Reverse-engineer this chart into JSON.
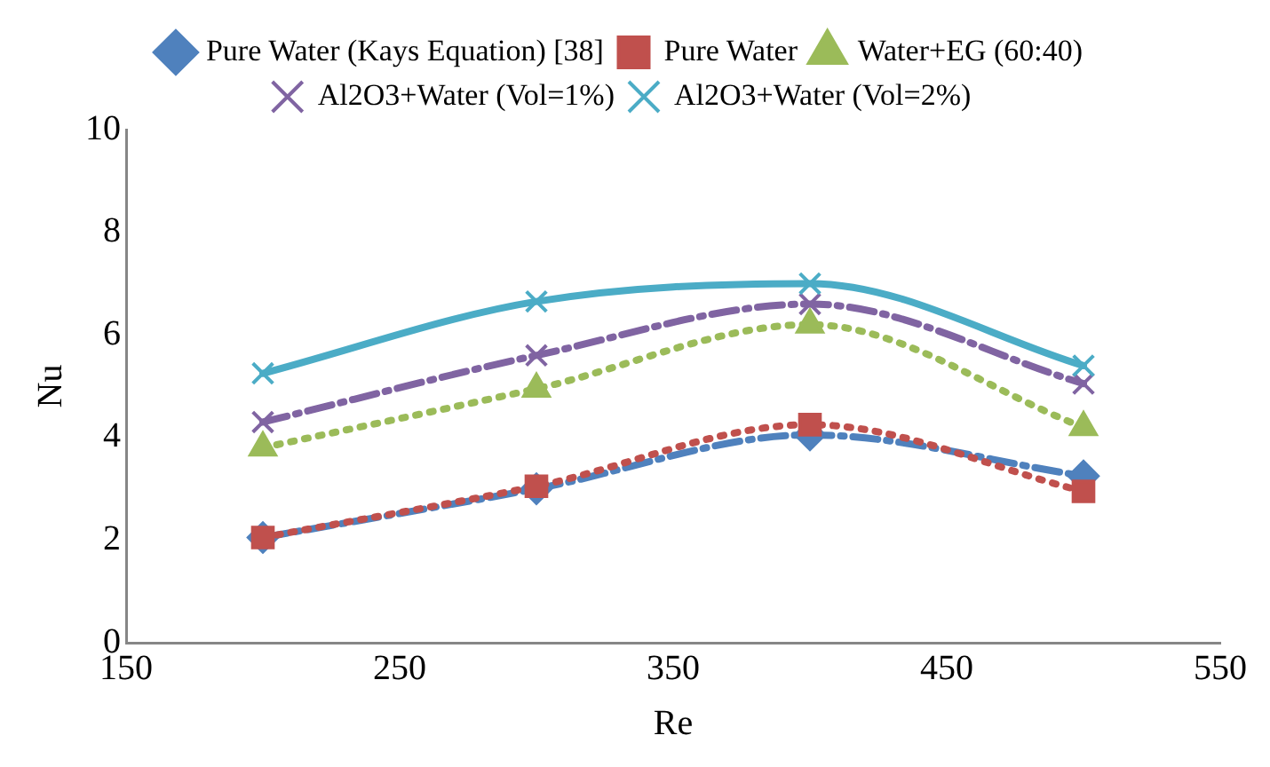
{
  "chart_data": {
    "type": "line",
    "xlabel": "Re",
    "ylabel": "Nu",
    "x": [
      200,
      300,
      400,
      500
    ],
    "series": [
      {
        "name": "Pure Water (Kays Equation) [38]",
        "color": "#4f81bd",
        "values": [
          2.05,
          3.0,
          4.05,
          3.25
        ],
        "marker": "diamond",
        "line_style": "dashed"
      },
      {
        "name": "Pure Water",
        "color": "#c0504d",
        "values": [
          2.05,
          3.05,
          4.25,
          2.95
        ],
        "marker": "square",
        "line_style": "dotted"
      },
      {
        "name": "Water+EG (60:40)",
        "color": "#9bbb59",
        "values": [
          3.8,
          4.95,
          6.2,
          4.2
        ],
        "marker": "triangle",
        "line_style": "dotted"
      },
      {
        "name": "Al2O3+Water (Vol=1%)",
        "color": "#8064a2",
        "values": [
          4.3,
          5.6,
          6.6,
          5.05
        ],
        "marker": "cross",
        "line_style": "dashed"
      },
      {
        "name": "Al2O3+Water (Vol=2%)",
        "color": "#4bacc6",
        "values": [
          5.25,
          6.65,
          7.0,
          5.4
        ],
        "marker": "cross",
        "line_style": "solid"
      }
    ],
    "xlim": [
      150,
      550
    ],
    "xticks": [
      150,
      250,
      350,
      450,
      550
    ],
    "ylim": [
      0,
      10
    ],
    "yticks": [
      0,
      2,
      4,
      6,
      8,
      10
    ],
    "grid": false,
    "legend": "top"
  }
}
